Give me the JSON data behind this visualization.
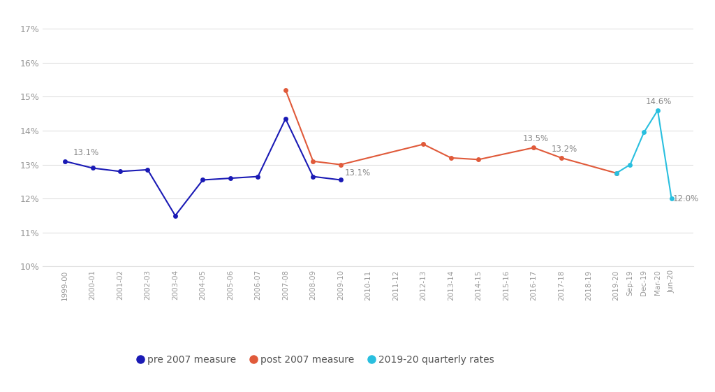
{
  "annual_labels": [
    "1999-00",
    "2000-01",
    "2001-02",
    "2002-03",
    "2003-04",
    "2004-05",
    "2005-06",
    "2006-07",
    "2007-08",
    "2008-09",
    "2009-10",
    "2010-11",
    "2011-12",
    "2012-13",
    "2013-14",
    "2014-15",
    "2015-16",
    "2016-17",
    "2017-18",
    "2018-19",
    "2019-20"
  ],
  "q_labels": [
    "Sep-19",
    "Dec-19",
    "Mar-20",
    "Jun-20"
  ],
  "pre2007_x": [
    0,
    1,
    2,
    3,
    4,
    5,
    6,
    7,
    8,
    9,
    10
  ],
  "pre2007_y": [
    13.1,
    12.9,
    12.8,
    12.85,
    11.5,
    12.55,
    12.6,
    12.65,
    14.35,
    12.65,
    12.55
  ],
  "post2007_x": [
    8,
    9,
    10,
    13,
    14,
    15,
    17,
    18,
    20
  ],
  "post2007_y": [
    15.2,
    13.1,
    13.0,
    13.6,
    13.2,
    13.15,
    13.5,
    13.2,
    12.75
  ],
  "qx_vals": [
    20,
    20.5,
    21.0,
    21.5,
    22.0
  ],
  "qy_vals": [
    12.75,
    13.0,
    13.95,
    14.6,
    12.0
  ],
  "pre2007_color": "#1a1ab5",
  "post2007_color": "#e05a3a",
  "quarterly_color": "#29bfdf",
  "ylim": [
    10.0,
    17.5
  ],
  "yticks": [
    10,
    11,
    12,
    13,
    14,
    15,
    16,
    17
  ],
  "background_color": "#ffffff",
  "grid_color": "#e0e0e0",
  "tick_label_color": "#999999",
  "ann_color": "#888888",
  "legend_labels": [
    "pre 2007 measure",
    "post 2007 measure",
    "2019-20 quarterly rates"
  ]
}
